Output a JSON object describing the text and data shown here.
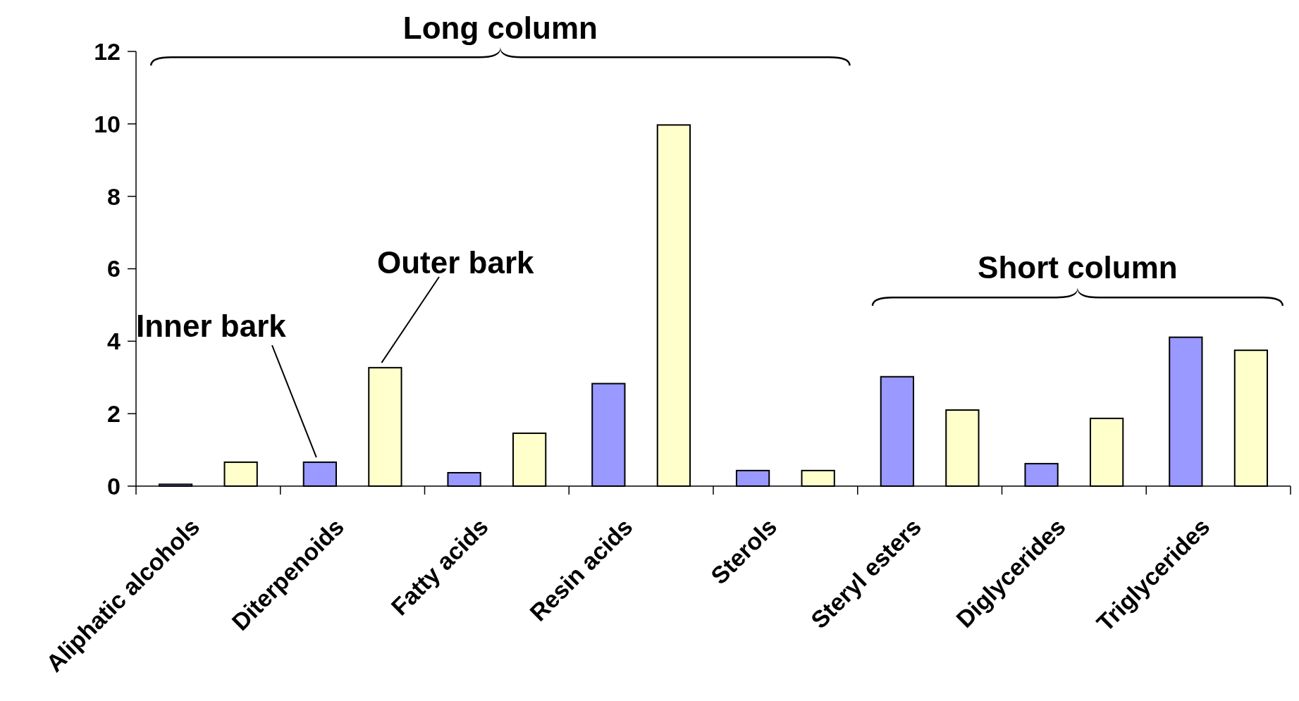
{
  "chart_data": {
    "type": "bar",
    "categories": [
      "Aliphatic alcohols",
      "Diterpenoids",
      "Fatty acids",
      "Resin acids",
      "Sterols",
      "Steryl esters",
      "Diglycerides",
      "Triglycerides"
    ],
    "series": [
      {
        "name": "Inner bark",
        "color": "#9999ff",
        "values": [
          0.05,
          0.66,
          0.37,
          2.83,
          0.43,
          3.02,
          0.62,
          4.11
        ]
      },
      {
        "name": "Outer bark",
        "color": "#ffffcc",
        "values": [
          0.66,
          3.27,
          1.46,
          9.97,
          0.43,
          2.1,
          1.87,
          3.75
        ]
      }
    ],
    "ylim": [
      0,
      12
    ],
    "yticks": [
      0,
      2,
      4,
      6,
      8,
      10,
      12
    ],
    "grid": false,
    "legend": false,
    "annotations": [
      "Long column",
      "Short column"
    ]
  }
}
